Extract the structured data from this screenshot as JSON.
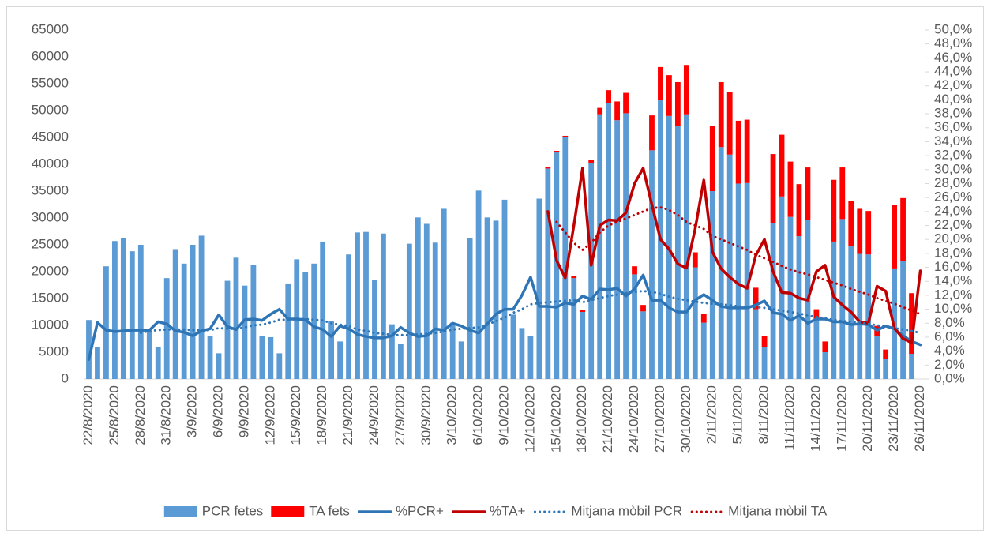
{
  "chart_data": {
    "type": "combo",
    "categories": [
      "22/8/2020",
      null,
      null,
      "25/8/2020",
      null,
      null,
      "28/8/2020",
      null,
      null,
      "31/8/2020",
      null,
      null,
      "3/9/2020",
      null,
      null,
      "6/9/2020",
      null,
      null,
      "9/9/2020",
      null,
      null,
      "12/9/2020",
      null,
      null,
      "15/9/2020",
      null,
      null,
      "18/9/2020",
      null,
      null,
      "21/9/2020",
      null,
      null,
      "24/9/2020",
      null,
      null,
      "27/9/2020",
      null,
      null,
      "30/9/2020",
      null,
      null,
      "3/10/2020",
      null,
      null,
      "6/10/2020",
      null,
      null,
      "9/10/2020",
      null,
      null,
      "12/10/2020",
      null,
      null,
      "15/10/2020",
      null,
      null,
      "18/10/2020",
      null,
      null,
      "21/10/2020",
      null,
      null,
      "24/10/2020",
      null,
      null,
      "27/10/2020",
      null,
      null,
      "30/10/2020",
      null,
      null,
      "2/11/2020",
      null,
      null,
      "5/11/2020",
      null,
      null,
      "8/11/2020",
      null,
      null,
      "11/11/2020",
      null,
      null,
      "14/11/2020",
      null,
      null,
      "17/11/2020",
      null,
      null,
      "20/11/2020",
      null,
      null,
      "23/11/2020",
      null,
      null,
      "26/11/2020"
    ],
    "ylim": [
      0,
      65000
    ],
    "yticks": [
      0,
      5000,
      10000,
      15000,
      20000,
      25000,
      30000,
      35000,
      40000,
      45000,
      50000,
      55000,
      60000,
      65000
    ],
    "y2lim": [
      0,
      50
    ],
    "y2ticks": [
      {
        "value": 0,
        "label": "0,0%"
      },
      {
        "value": 2,
        "label": "2,0%"
      },
      {
        "value": 4,
        "label": "4,0%"
      },
      {
        "value": 6,
        "label": "6,0%"
      },
      {
        "value": 8,
        "label": "8,0%"
      },
      {
        "value": 10,
        "label": "10,0%"
      },
      {
        "value": 12,
        "label": "12,0%"
      },
      {
        "value": 14,
        "label": "14,0%"
      },
      {
        "value": 16,
        "label": "16,0%"
      },
      {
        "value": 18,
        "label": "18,0%"
      },
      {
        "value": 20,
        "label": "20,0%"
      },
      {
        "value": 22,
        "label": "22,0%"
      },
      {
        "value": 24,
        "label": "24,0%"
      },
      {
        "value": 26,
        "label": "26,0%"
      },
      {
        "value": 28,
        "label": "28,0%"
      },
      {
        "value": 30,
        "label": "30,0%"
      },
      {
        "value": 32,
        "label": "32,0%"
      },
      {
        "value": 34,
        "label": "34,0%"
      },
      {
        "value": 36,
        "label": "36,0%"
      },
      {
        "value": 38,
        "label": "38,0%"
      },
      {
        "value": 40,
        "label": "40,0%"
      },
      {
        "value": 42,
        "label": "42,0%"
      },
      {
        "value": 44,
        "label": "44,0%"
      },
      {
        "value": 46,
        "label": "46,0%"
      },
      {
        "value": 48,
        "label": "48,0%"
      },
      {
        "value": 50,
        "label": "50,0%"
      }
    ],
    "grid": false,
    "legend": "bottom",
    "series": [
      {
        "name": "PCR fetes",
        "type": "bar",
        "color": "#5b9bd5",
        "values": [
          11000,
          6000,
          21000,
          25700,
          26200,
          23800,
          25000,
          9000,
          6000,
          18800,
          24200,
          21500,
          25000,
          26700,
          8000,
          4800,
          18300,
          22600,
          17400,
          21300,
          8000,
          7800,
          4800,
          17800,
          22300,
          20000,
          21500,
          25600,
          10800,
          7000,
          23200,
          27300,
          27400,
          18500,
          27100,
          10200,
          6500,
          25200,
          30100,
          28900,
          25400,
          31700,
          10500,
          7000,
          26200,
          35100,
          30100,
          29500,
          33400,
          12000,
          9500,
          8000,
          33600,
          39200,
          42200,
          45000,
          18800,
          12500,
          40300,
          49300,
          51400,
          48200,
          49500,
          19500,
          12600,
          42600,
          51900,
          49000,
          47200,
          49300,
          20800,
          10500,
          35000,
          43200,
          41800,
          36400,
          36500,
          13000,
          6000,
          29000,
          34000,
          30200,
          26600,
          29700,
          11000,
          5000,
          25600,
          29800,
          24700,
          23300,
          23200,
          8000,
          3700,
          20600,
          22000,
          4700,
          null
        ]
      },
      {
        "name": "TA fets",
        "type": "bar",
        "color": "#ff0000",
        "values": [
          null,
          null,
          null,
          null,
          null,
          null,
          null,
          null,
          null,
          null,
          null,
          null,
          null,
          null,
          null,
          null,
          null,
          null,
          null,
          null,
          null,
          null,
          null,
          null,
          null,
          null,
          null,
          null,
          null,
          null,
          null,
          null,
          null,
          null,
          null,
          null,
          null,
          null,
          null,
          null,
          null,
          null,
          null,
          null,
          null,
          null,
          null,
          null,
          null,
          null,
          null,
          null,
          null,
          300,
          300,
          300,
          400,
          400,
          500,
          1200,
          2400,
          3500,
          3800,
          1500,
          1200,
          6500,
          6200,
          7600,
          8100,
          9200,
          2800,
          1700,
          12200,
          12100,
          11600,
          11700,
          11800,
          4000,
          2000,
          12900,
          11500,
          10300,
          9700,
          9700,
          2000,
          2000,
          11500,
          9600,
          8400,
          8400,
          8100,
          1900,
          1800,
          11800,
          11700,
          11300,
          null
        ]
      },
      {
        "name": "%PCR+",
        "type": "line",
        "axis": "y2",
        "color": "#2e75b6",
        "style": "solid",
        "values": [
          2.8,
          8.1,
          7.0,
          6.8,
          6.9,
          7.0,
          7.0,
          7.0,
          8.2,
          7.9,
          6.9,
          6.7,
          6.2,
          6.9,
          7.2,
          9.2,
          7.5,
          7.1,
          8.5,
          8.6,
          8.4,
          9.3,
          10.0,
          8.6,
          8.6,
          8.5,
          7.5,
          7.1,
          6.1,
          7.6,
          7.2,
          6.4,
          6.1,
          5.9,
          5.9,
          6.2,
          7.4,
          6.6,
          6.1,
          6.2,
          7.2,
          7.0,
          8.0,
          7.6,
          7.0,
          6.6,
          7.9,
          9.3,
          10.0,
          10.0,
          12.0,
          14.6,
          10.4,
          10.4,
          10.3,
          10.9,
          10.7,
          11.9,
          11.4,
          12.9,
          12.8,
          13.0,
          11.9,
          12.9,
          14.9,
          11.3,
          11.3,
          10.2,
          9.6,
          9.6,
          11.3,
          12.1,
          11.3,
          10.4,
          10.2,
          10.2,
          10.2,
          10.6,
          11.2,
          9.5,
          9.3,
          8.4,
          9.1,
          8.0,
          8.6,
          8.6,
          8.2,
          8.2,
          7.8,
          7.9,
          7.8,
          7.0,
          7.6,
          7.2,
          6.2,
          5.4,
          4.9
        ]
      },
      {
        "name": "%TA+",
        "type": "line",
        "axis": "y2",
        "color": "#c00000",
        "style": "solid",
        "values": [
          null,
          null,
          null,
          null,
          null,
          null,
          null,
          null,
          null,
          null,
          null,
          null,
          null,
          null,
          null,
          null,
          null,
          null,
          null,
          null,
          null,
          null,
          null,
          null,
          null,
          null,
          null,
          null,
          null,
          null,
          null,
          null,
          null,
          null,
          null,
          null,
          null,
          null,
          null,
          null,
          null,
          null,
          null,
          null,
          null,
          null,
          null,
          null,
          null,
          null,
          null,
          null,
          null,
          24.0,
          17.0,
          14.5,
          22.0,
          30.2,
          16.3,
          22.0,
          22.8,
          22.7,
          23.8,
          28.0,
          30.2,
          25.0,
          20.0,
          18.6,
          16.5,
          15.9,
          21.5,
          28.5,
          18.2,
          15.8,
          14.6,
          13.6,
          13.0,
          17.7,
          20.0,
          15.4,
          12.4,
          12.3,
          11.6,
          11.3,
          15.4,
          16.3,
          11.8,
          10.6,
          9.6,
          8.2,
          8.0,
          13.3,
          12.6,
          7.3,
          5.8,
          5.2,
          15.5
        ]
      },
      {
        "name": "Mitjana mòbil PCR",
        "type": "line",
        "axis": "y2",
        "color": "#2e75b6",
        "style": "dotted",
        "values": [
          null,
          null,
          null,
          null,
          null,
          null,
          6.6,
          6.9,
          7.0,
          7.1,
          7.1,
          7.1,
          7.0,
          7.0,
          7.0,
          7.3,
          7.2,
          7.2,
          7.4,
          7.7,
          7.8,
          8.1,
          8.5,
          8.5,
          8.6,
          8.6,
          8.5,
          8.4,
          8.0,
          7.8,
          7.6,
          7.1,
          6.9,
          6.6,
          6.5,
          6.3,
          6.3,
          6.3,
          6.4,
          6.5,
          6.6,
          6.8,
          7.1,
          7.2,
          7.3,
          7.4,
          7.8,
          8.3,
          8.8,
          9.5,
          10.0,
          10.7,
          10.9,
          11.0,
          11.1,
          11.2,
          11.3,
          11.0,
          11.3,
          11.6,
          11.9,
          12.1,
          12.3,
          12.5,
          12.6,
          12.5,
          12.2,
          11.8,
          11.5,
          11.3,
          11.1,
          10.9,
          10.8,
          10.7,
          10.6,
          10.4,
          10.3,
          10.3,
          10.2,
          10.0,
          9.8,
          9.6,
          9.4,
          9.1,
          8.9,
          8.7,
          8.5,
          8.3,
          8.2,
          8.1,
          7.9,
          7.7,
          7.5,
          7.3,
          7.1,
          6.9,
          6.6
        ]
      },
      {
        "name": "Mitjana mòbil TA",
        "type": "line",
        "axis": "y2",
        "color": "#c00000",
        "style": "dotted",
        "values": [
          null,
          null,
          null,
          null,
          null,
          null,
          null,
          null,
          null,
          null,
          null,
          null,
          null,
          null,
          null,
          null,
          null,
          null,
          null,
          null,
          null,
          null,
          null,
          null,
          null,
          null,
          null,
          null,
          null,
          null,
          null,
          null,
          null,
          null,
          null,
          null,
          null,
          null,
          null,
          null,
          null,
          null,
          null,
          null,
          null,
          null,
          null,
          null,
          null,
          null,
          null,
          null,
          null,
          null,
          22.5,
          21.0,
          19.5,
          18.5,
          19.5,
          21.0,
          22.0,
          22.5,
          23.0,
          23.5,
          24.0,
          24.5,
          24.6,
          24.2,
          23.5,
          22.5,
          22.0,
          21.5,
          20.5,
          20.0,
          19.5,
          19.0,
          18.5,
          17.8,
          17.3,
          16.8,
          16.2,
          15.7,
          15.3,
          15.0,
          14.6,
          14.2,
          13.8,
          13.4,
          12.9,
          12.5,
          12.1,
          11.6,
          11.2,
          10.8,
          10.3,
          9.8,
          9.3
        ]
      }
    ]
  }
}
